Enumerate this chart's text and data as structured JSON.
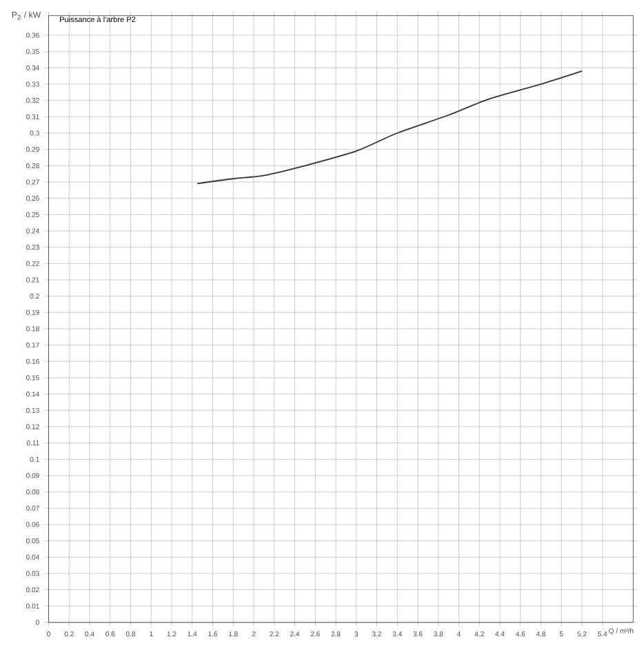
{
  "chart_data": {
    "type": "line",
    "title": "Puissance à l'arbre P2",
    "xlabel": "Q / m³/h",
    "ylabel": "P$_{2}$ / kW",
    "x": [
      1.45,
      1.8,
      2.1,
      2.5,
      3.0,
      3.4,
      3.9,
      4.3,
      4.8,
      5.2
    ],
    "series": [
      {
        "color": "#333333",
        "values": [
          0.269,
          0.272,
          0.274,
          0.28,
          0.289,
          0.3,
          0.311,
          0.321,
          0.33,
          0.338
        ]
      }
    ],
    "xlim": [
      0,
      5.7
    ],
    "ylim": [
      0,
      0.372
    ],
    "xticks": [
      0,
      0.2,
      0.4,
      0.6,
      0.8,
      1,
      1.2,
      1.4,
      1.6,
      1.8,
      2,
      2.2,
      2.4,
      2.6,
      2.8,
      3,
      3.2,
      3.4,
      3.6,
      3.8,
      4,
      4.2,
      4.4,
      4.6,
      4.8,
      5,
      5.2,
      5.4
    ],
    "yticks": [
      0,
      0.01,
      0.02,
      0.03,
      0.04,
      0.05,
      0.06,
      0.07,
      0.08,
      0.09,
      0.1,
      0.11,
      0.12,
      0.13,
      0.14,
      0.15,
      0.16,
      0.17,
      0.18,
      0.19,
      0.2,
      0.21,
      0.22,
      0.23,
      0.24,
      0.25,
      0.26,
      0.27,
      0.28,
      0.29,
      0.3,
      0.31,
      0.32,
      0.33,
      0.34,
      0.35,
      0.36
    ],
    "grid": true,
    "marker": "none",
    "line_style": "solid"
  }
}
